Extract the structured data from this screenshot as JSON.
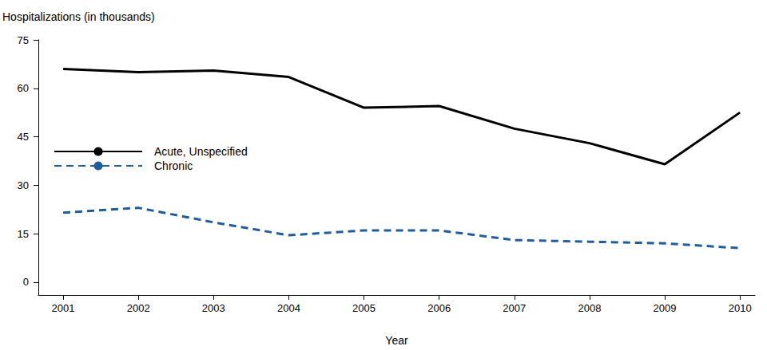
{
  "chart_data": {
    "type": "line",
    "y_label": "Hospitalizations (in thousands)",
    "x_label": "Year",
    "x": [
      2001,
      2002,
      2003,
      2004,
      2005,
      2006,
      2007,
      2008,
      2009,
      2010
    ],
    "xlim": [
      2000.67,
      2010.2
    ],
    "xticks": [
      2001,
      2002,
      2003,
      2004,
      2005,
      2006,
      2007,
      2008,
      2009,
      2010
    ],
    "ylim": [
      -4,
      75
    ],
    "yticks": [
      0,
      15,
      30,
      45,
      60,
      75
    ],
    "grid": false,
    "legend": "center left",
    "series": [
      {
        "name": "Acute, Unspecified",
        "color": "#000000",
        "line_style": "solid",
        "marker": "none",
        "values": [
          66,
          65,
          65.5,
          63.5,
          54,
          54.5,
          47.5,
          43,
          36.5,
          52.5
        ]
      },
      {
        "name": "Chronic",
        "color": "#1f5d9c",
        "line_style": "dashed",
        "marker": "none",
        "values": [
          21.5,
          23,
          18.5,
          14.5,
          16,
          16,
          13,
          12.5,
          12,
          10.5
        ]
      }
    ]
  }
}
